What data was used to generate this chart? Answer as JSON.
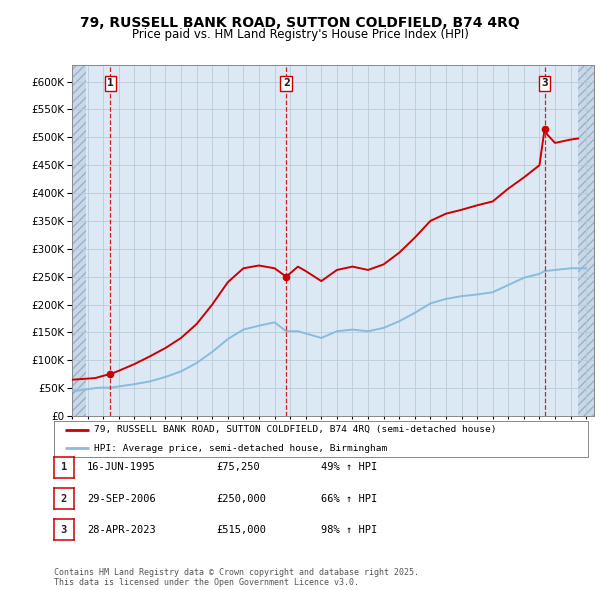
{
  "title": "79, RUSSELL BANK ROAD, SUTTON COLDFIELD, B74 4RQ",
  "subtitle": "Price paid vs. HM Land Registry's House Price Index (HPI)",
  "transactions": [
    {
      "label": "1",
      "date": "16-JUN-1995",
      "date_num": 1995.46,
      "price": 75250
    },
    {
      "label": "2",
      "date": "29-SEP-2006",
      "date_num": 2006.75,
      "price": 250000
    },
    {
      "label": "3",
      "date": "28-APR-2023",
      "date_num": 2023.33,
      "price": 515000
    }
  ],
  "hpi_line_color": "#88bbdd",
  "price_line_color": "#cc0000",
  "vline_color": "#cc0000",
  "plot_bg_color": "#dce9f5",
  "hatch_color": "#c8d8e8",
  "ylim": [
    0,
    630000
  ],
  "yticks": [
    0,
    50000,
    100000,
    150000,
    200000,
    250000,
    300000,
    350000,
    400000,
    450000,
    500000,
    550000,
    600000
  ],
  "xlim": [
    1993,
    2026.5
  ],
  "legend_entry1": "79, RUSSELL BANK ROAD, SUTTON COLDFIELD, B74 4RQ (semi-detached house)",
  "legend_entry2": "HPI: Average price, semi-detached house, Birmingham",
  "footer": "Contains HM Land Registry data © Crown copyright and database right 2025.\nThis data is licensed under the Open Government Licence v3.0.",
  "table_rows": [
    [
      "1",
      "16-JUN-1995",
      "£75,250",
      "49% ↑ HPI"
    ],
    [
      "2",
      "29-SEP-2006",
      "£250,000",
      "66% ↑ HPI"
    ],
    [
      "3",
      "28-APR-2023",
      "£515,000",
      "98% ↑ HPI"
    ]
  ],
  "hpi_data_x": [
    1993.0,
    1993.5,
    1994.0,
    1994.5,
    1995.0,
    1995.46,
    1996.0,
    1997.0,
    1998.0,
    1999.0,
    2000.0,
    2001.0,
    2002.0,
    2003.0,
    2004.0,
    2005.0,
    2006.0,
    2006.75,
    2007.5,
    2008.0,
    2009.0,
    2010.0,
    2011.0,
    2012.0,
    2013.0,
    2014.0,
    2015.0,
    2016.0,
    2017.0,
    2018.0,
    2019.0,
    2020.0,
    2021.0,
    2022.0,
    2023.0,
    2023.33,
    2024.0,
    2025.0,
    2025.5,
    2026.0
  ],
  "hpi_data_y": [
    45000,
    46000,
    48000,
    50000,
    51000,
    50500,
    53000,
    57000,
    62000,
    70000,
    80000,
    95000,
    115000,
    138000,
    155000,
    162000,
    168000,
    152000,
    152000,
    148000,
    140000,
    152000,
    155000,
    152000,
    158000,
    170000,
    185000,
    202000,
    210000,
    215000,
    218000,
    222000,
    235000,
    248000,
    255000,
    260000,
    262000,
    265000,
    265000,
    265000
  ],
  "price_data_x": [
    1993.0,
    1994.5,
    1995.0,
    1995.46,
    1996.0,
    1997.0,
    1998.0,
    1999.0,
    2000.0,
    2001.0,
    2002.0,
    2003.0,
    2004.0,
    2005.0,
    2006.0,
    2006.75,
    2007.5,
    2008.0,
    2009.0,
    2010.0,
    2011.0,
    2012.0,
    2013.0,
    2014.0,
    2015.0,
    2016.0,
    2017.0,
    2018.0,
    2019.0,
    2020.0,
    2021.0,
    2022.0,
    2023.0,
    2023.33,
    2023.5,
    2024.0,
    2024.5,
    2025.0,
    2025.5
  ],
  "price_data_y": [
    65000,
    68000,
    72000,
    75250,
    81000,
    93000,
    107000,
    122000,
    140000,
    165000,
    200000,
    240000,
    265000,
    270000,
    265000,
    250000,
    268000,
    260000,
    242000,
    262000,
    268000,
    262000,
    272000,
    293000,
    320000,
    350000,
    363000,
    370000,
    378000,
    385000,
    408000,
    428000,
    450000,
    515000,
    505000,
    490000,
    493000,
    496000,
    498000
  ]
}
